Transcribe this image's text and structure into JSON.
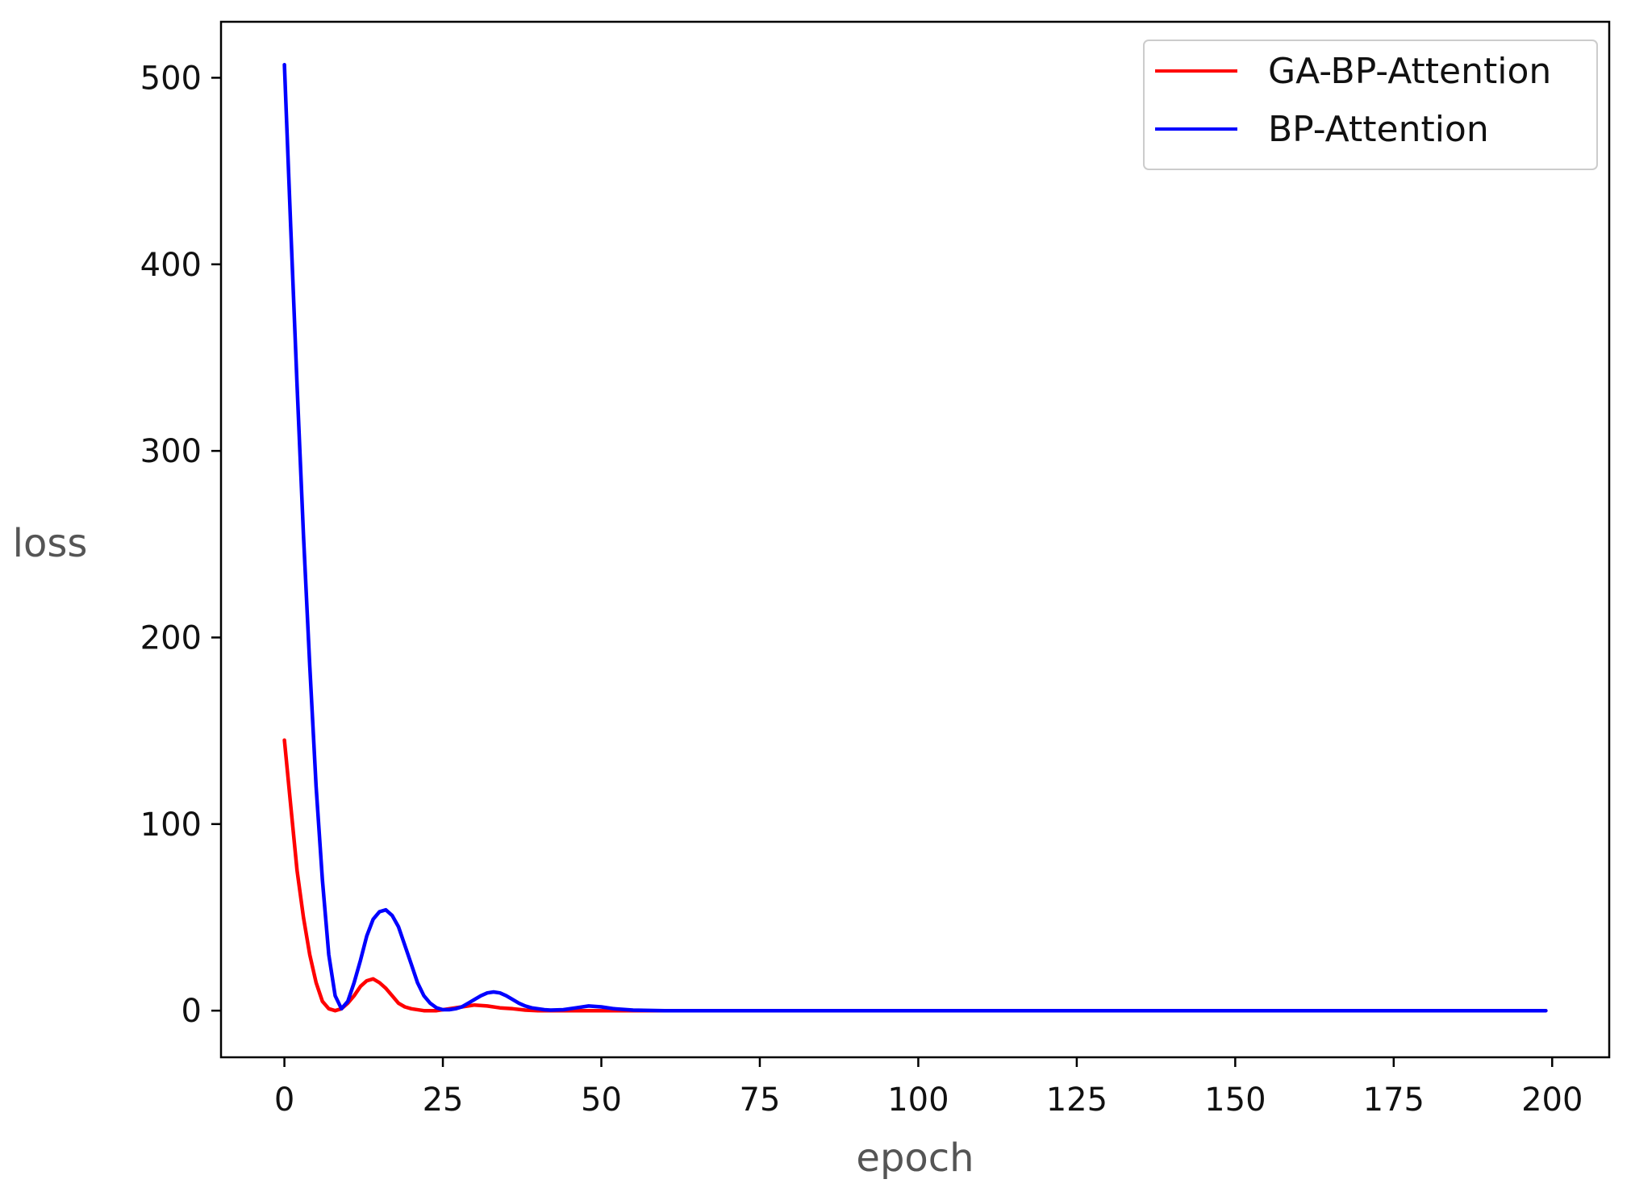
{
  "chart_data": {
    "type": "line",
    "xlabel": "epoch",
    "ylabel": "loss",
    "xlim": [
      -10,
      209
    ],
    "ylim": [
      -25,
      530
    ],
    "xticks": [
      0,
      25,
      50,
      75,
      100,
      125,
      150,
      175,
      200
    ],
    "yticks": [
      0,
      100,
      200,
      300,
      400,
      500
    ],
    "grid": false,
    "legend_position": "top-right",
    "series": [
      {
        "name": "GA-BP-Attention",
        "color": "#ff0000",
        "points": [
          [
            0,
            145
          ],
          [
            1,
            110
          ],
          [
            2,
            75
          ],
          [
            3,
            50
          ],
          [
            4,
            30
          ],
          [
            5,
            15
          ],
          [
            6,
            5
          ],
          [
            7,
            1
          ],
          [
            8,
            0
          ],
          [
            9,
            1
          ],
          [
            10,
            4
          ],
          [
            11,
            8
          ],
          [
            12,
            13
          ],
          [
            13,
            16
          ],
          [
            14,
            17
          ],
          [
            15,
            15
          ],
          [
            16,
            12
          ],
          [
            17,
            8
          ],
          [
            18,
            4
          ],
          [
            19,
            2
          ],
          [
            20,
            1
          ],
          [
            22,
            0
          ],
          [
            24,
            0
          ],
          [
            26,
            1
          ],
          [
            28,
            2
          ],
          [
            30,
            3
          ],
          [
            32,
            2.5
          ],
          [
            34,
            1.5
          ],
          [
            36,
            1
          ],
          [
            38,
            0.3
          ],
          [
            40,
            0
          ],
          [
            45,
            0
          ],
          [
            50,
            0
          ],
          [
            60,
            0
          ],
          [
            80,
            0
          ],
          [
            100,
            0
          ],
          [
            125,
            0
          ],
          [
            150,
            0
          ],
          [
            175,
            0
          ],
          [
            199,
            0
          ]
        ]
      },
      {
        "name": "BP-Attention",
        "color": "#0000ff",
        "points": [
          [
            0,
            507
          ],
          [
            1,
            420
          ],
          [
            2,
            335
          ],
          [
            3,
            255
          ],
          [
            4,
            185
          ],
          [
            5,
            120
          ],
          [
            6,
            70
          ],
          [
            7,
            30
          ],
          [
            8,
            8
          ],
          [
            9,
            1
          ],
          [
            10,
            5
          ],
          [
            11,
            15
          ],
          [
            12,
            27
          ],
          [
            13,
            40
          ],
          [
            14,
            49
          ],
          [
            15,
            53
          ],
          [
            16,
            54
          ],
          [
            17,
            51
          ],
          [
            18,
            45
          ],
          [
            19,
            35
          ],
          [
            20,
            25
          ],
          [
            21,
            15
          ],
          [
            22,
            8
          ],
          [
            23,
            4
          ],
          [
            24,
            1.5
          ],
          [
            25,
            0.5
          ],
          [
            26,
            0.5
          ],
          [
            27,
            1
          ],
          [
            28,
            2
          ],
          [
            29,
            4
          ],
          [
            30,
            6
          ],
          [
            31,
            8
          ],
          [
            32,
            9.5
          ],
          [
            33,
            10
          ],
          [
            34,
            9.5
          ],
          [
            35,
            8
          ],
          [
            36,
            6
          ],
          [
            37,
            4
          ],
          [
            38,
            2.5
          ],
          [
            39,
            1.5
          ],
          [
            40,
            1
          ],
          [
            41,
            0.5
          ],
          [
            42,
            0.3
          ],
          [
            44,
            0.5
          ],
          [
            46,
            1.5
          ],
          [
            48,
            2.5
          ],
          [
            50,
            2
          ],
          [
            52,
            1
          ],
          [
            55,
            0.3
          ],
          [
            60,
            0
          ],
          [
            80,
            0
          ],
          [
            100,
            0
          ],
          [
            125,
            0
          ],
          [
            150,
            0
          ],
          [
            175,
            0
          ],
          [
            199,
            0
          ]
        ]
      }
    ]
  }
}
